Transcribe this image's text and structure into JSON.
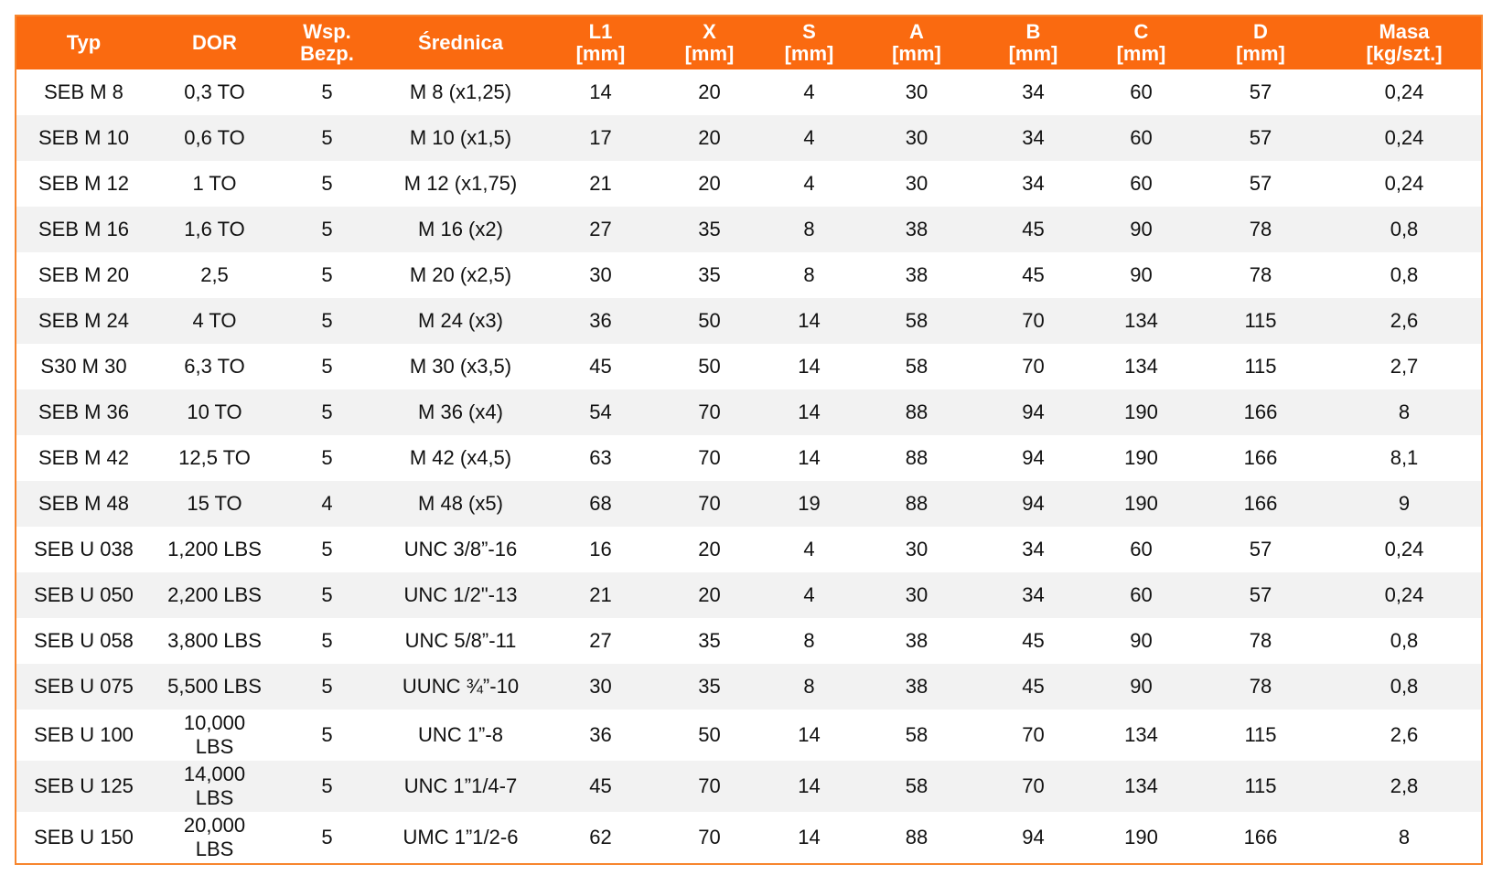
{
  "table": {
    "header": [
      "Typ",
      "DOR",
      "Wsp.\nBezp.",
      "Średnica",
      "L1\n[mm]",
      "X\n[mm]",
      "S\n[mm]",
      "A\n[mm]",
      "B\n[mm]",
      "C\n[mm]",
      "D\n[mm]",
      "Masa\n[kg/szt.]"
    ],
    "rows": [
      [
        "SEB M 8",
        "0,3 TO",
        "5",
        "M 8 (x1,25)",
        "14",
        "20",
        "4",
        "30",
        "34",
        "60",
        "57",
        "0,24"
      ],
      [
        "SEB M 10",
        "0,6 TO",
        "5",
        "M 10 (x1,5)",
        "17",
        "20",
        "4",
        "30",
        "34",
        "60",
        "57",
        "0,24"
      ],
      [
        "SEB M 12",
        "1 TO",
        "5",
        "M 12 (x1,75)",
        "21",
        "20",
        "4",
        "30",
        "34",
        "60",
        "57",
        "0,24"
      ],
      [
        "SEB M 16",
        "1,6 TO",
        "5",
        "M 16 (x2)",
        "27",
        "35",
        "8",
        "38",
        "45",
        "90",
        "78",
        "0,8"
      ],
      [
        "SEB M 20",
        "2,5",
        "5",
        "M 20 (x2,5)",
        "30",
        "35",
        "8",
        "38",
        "45",
        "90",
        "78",
        "0,8"
      ],
      [
        "SEB M 24",
        "4 TO",
        "5",
        "M 24 (x3)",
        "36",
        "50",
        "14",
        "58",
        "70",
        "134",
        "115",
        "2,6"
      ],
      [
        "S30 M 30",
        "6,3 TO",
        "5",
        "M 30 (x3,5)",
        "45",
        "50",
        "14",
        "58",
        "70",
        "134",
        "115",
        "2,7"
      ],
      [
        "SEB M 36",
        "10 TO",
        "5",
        "M 36 (x4)",
        "54",
        "70",
        "14",
        "88",
        "94",
        "190",
        "166",
        "8"
      ],
      [
        "SEB M 42",
        "12,5 TO",
        "5",
        "M 42 (x4,5)",
        "63",
        "70",
        "14",
        "88",
        "94",
        "190",
        "166",
        "8,1"
      ],
      [
        "SEB M 48",
        "15 TO",
        "4",
        "M 48 (x5)",
        "68",
        "70",
        "19",
        "88",
        "94",
        "190",
        "166",
        "9"
      ],
      [
        "SEB U 038",
        "1,200 LBS",
        "5",
        "UNC 3/8”-16",
        "16",
        "20",
        "4",
        "30",
        "34",
        "60",
        "57",
        "0,24"
      ],
      [
        "SEB U 050",
        "2,200 LBS",
        "5",
        "UNC 1/2\"-13",
        "21",
        "20",
        "4",
        "30",
        "34",
        "60",
        "57",
        "0,24"
      ],
      [
        "SEB U 058",
        "3,800 LBS",
        "5",
        "UNC 5/8”-11",
        "27",
        "35",
        "8",
        "38",
        "45",
        "90",
        "78",
        "0,8"
      ],
      [
        "SEB U 075",
        "5,500 LBS",
        "5",
        "UUNC ¾”-10",
        "30",
        "35",
        "8",
        "38",
        "45",
        "90",
        "78",
        "0,8"
      ],
      [
        "SEB U 100",
        "10,000\nLBS",
        "5",
        "UNC 1”-8",
        "36",
        "50",
        "14",
        "58",
        "70",
        "134",
        "115",
        "2,6"
      ],
      [
        "SEB U 125",
        "14,000\nLBS",
        "5",
        "UNC 1”1/4-7",
        "45",
        "70",
        "14",
        "58",
        "70",
        "134",
        "115",
        "2,8"
      ],
      [
        "SEB U 150",
        "20,000\nLBS",
        "5",
        "UMC 1”1/2-6",
        "62",
        "70",
        "14",
        "88",
        "94",
        "190",
        "166",
        "8"
      ]
    ]
  }
}
